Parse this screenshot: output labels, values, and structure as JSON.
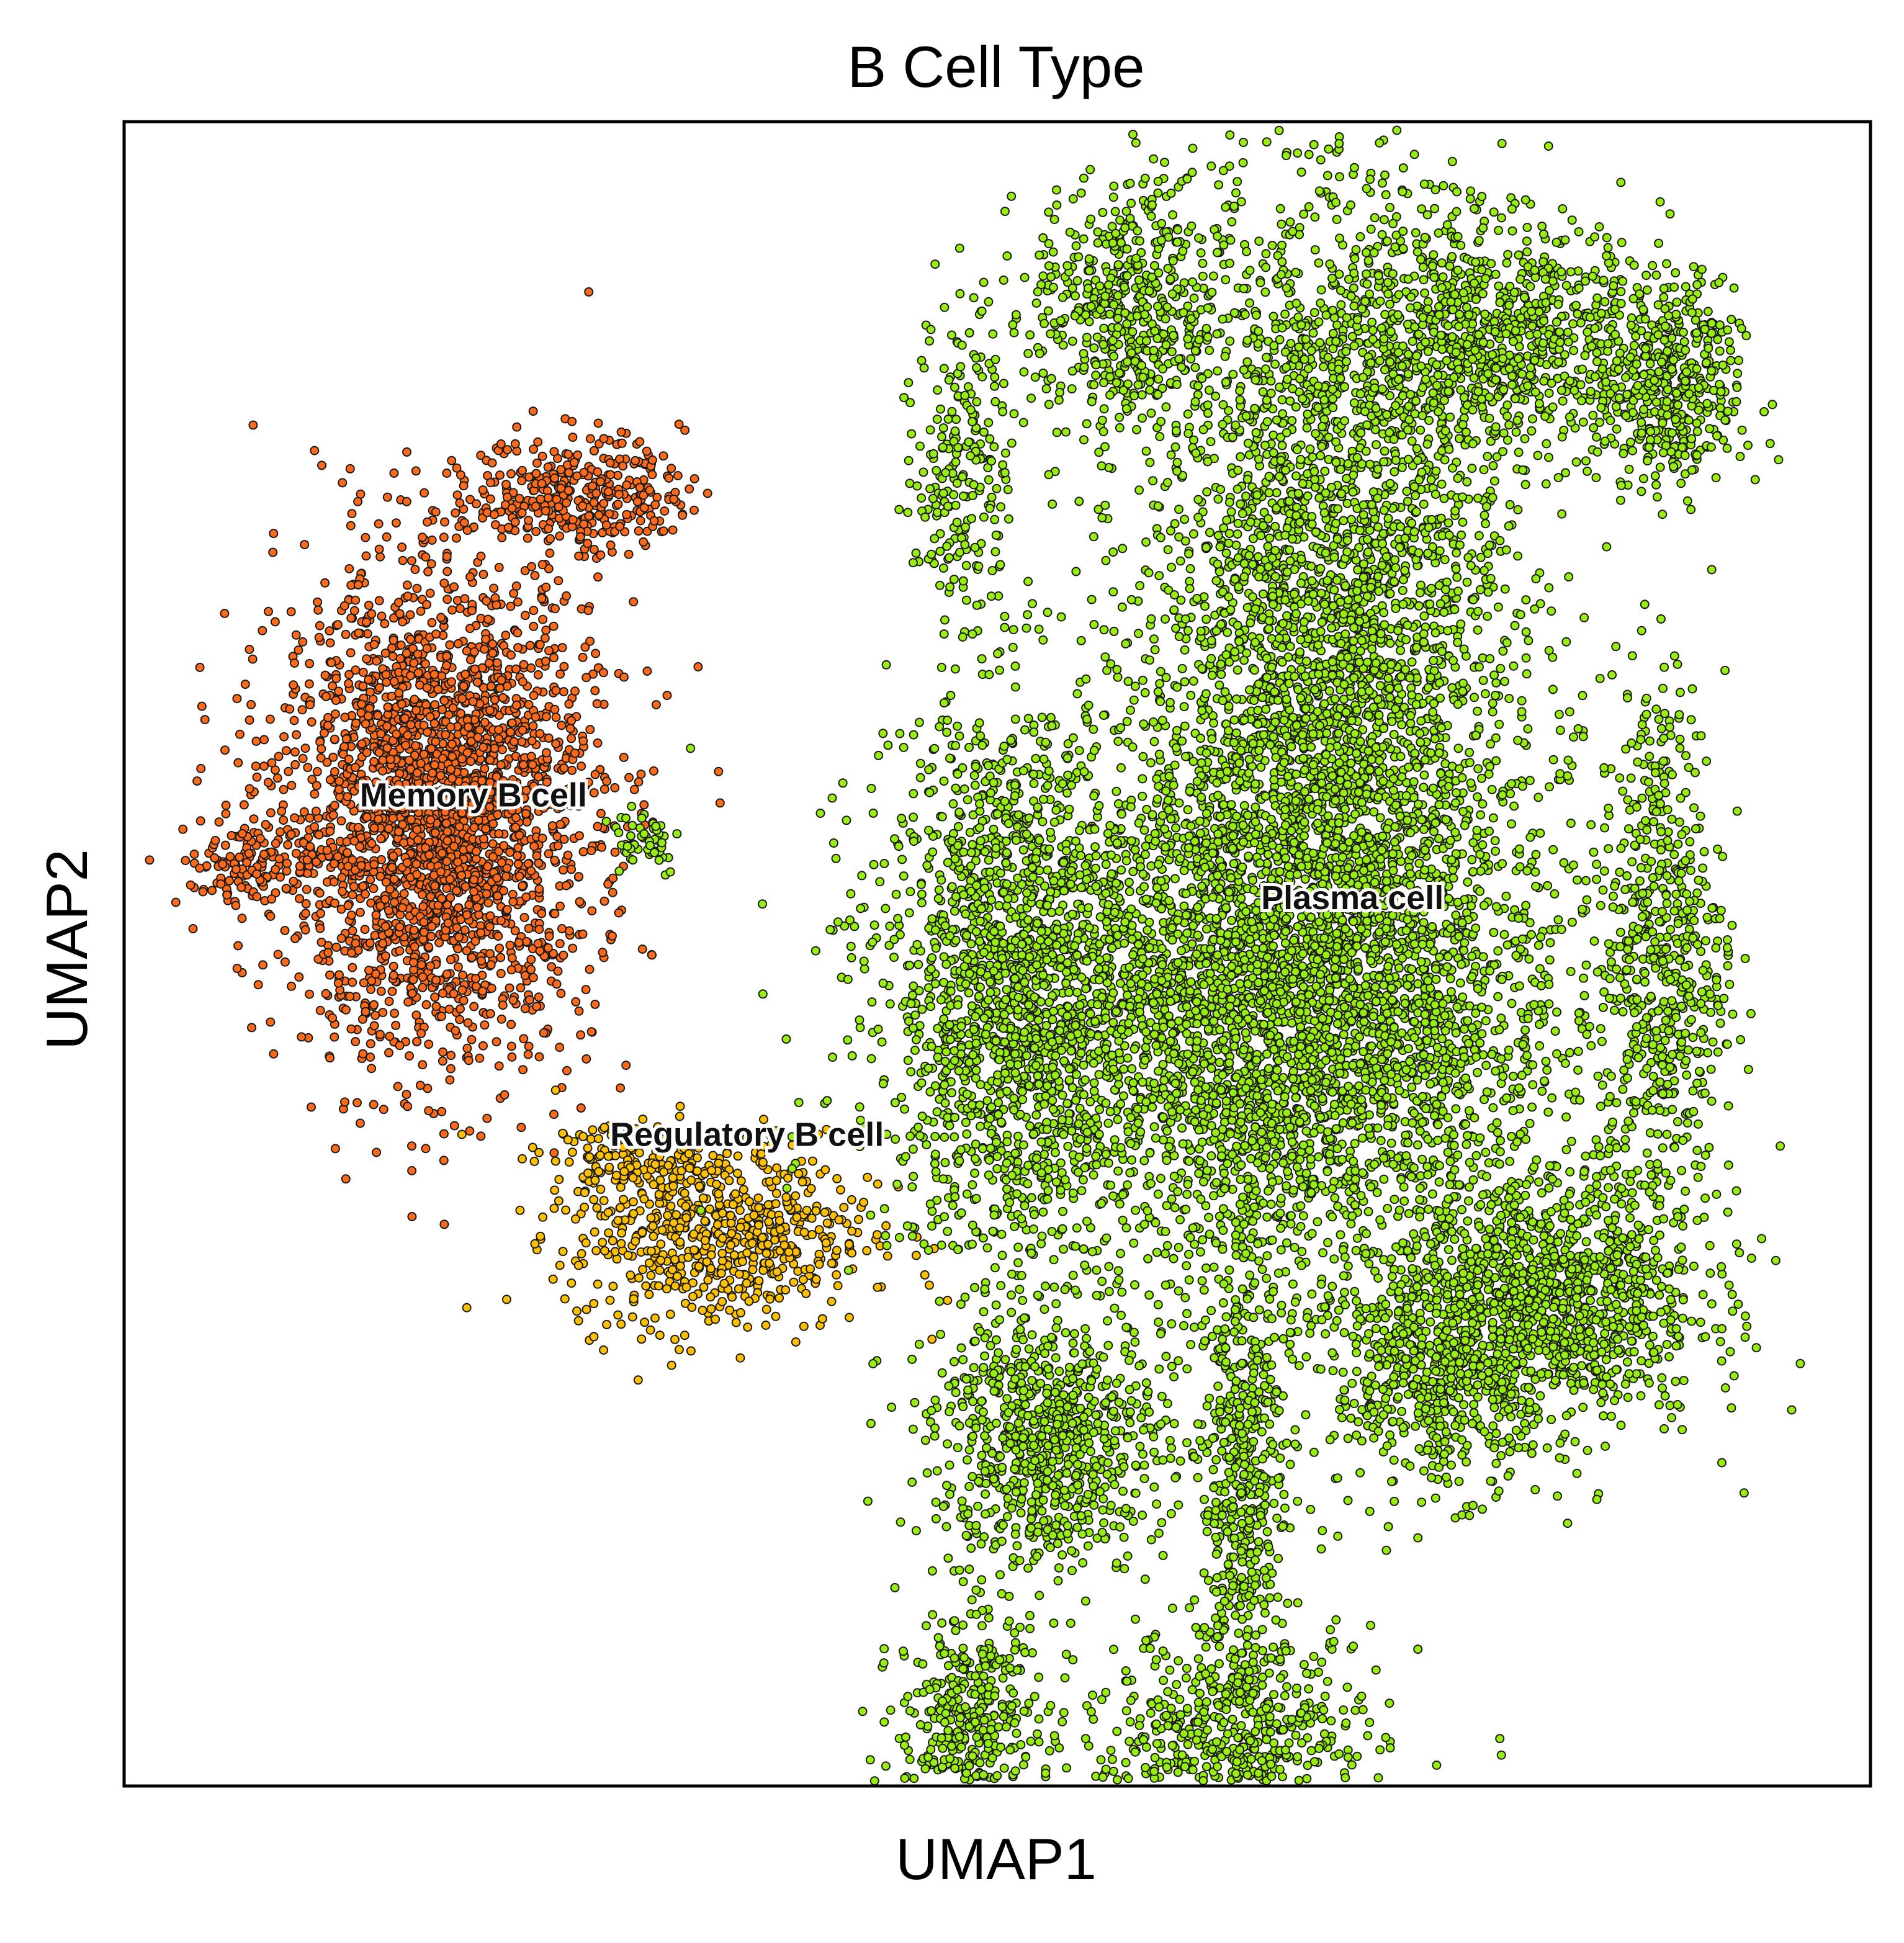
{
  "chart_data": {
    "type": "scatter",
    "title": "B Cell Type",
    "xlabel": "UMAP1",
    "ylabel": "UMAP2",
    "grid": false,
    "legend": "none",
    "xlim": [
      -10,
      20
    ],
    "ylim": [
      -10,
      16
    ],
    "series": [
      {
        "name": "Memory B cell",
        "color": "#FF6A1A",
        "clusters": [
          {
            "cx": -4.6,
            "cy": 5.2,
            "sx": 1.35,
            "sy": 1.9,
            "n": 2600
          },
          {
            "cx": -2.2,
            "cy": 10.2,
            "sx": 0.9,
            "sy": 0.45,
            "n": 350
          },
          {
            "cx": -7.8,
            "cy": 4.4,
            "sx": 0.6,
            "sy": 0.35,
            "n": 140
          }
        ]
      },
      {
        "name": "Regulatory B cell",
        "color": "#FFC000",
        "clusters": [
          {
            "cx": 0.2,
            "cy": -1.4,
            "sx": 1.3,
            "sy": 0.75,
            "n": 650
          },
          {
            "cx": -1.4,
            "cy": -0.2,
            "sx": 0.6,
            "sy": 0.3,
            "n": 120
          }
        ]
      },
      {
        "name": "Plasma cell",
        "color": "#99EE11",
        "clusters": [
          {
            "cx": 10.7,
            "cy": 6.8,
            "sx": 1.6,
            "sy": 4.2,
            "n": 4200
          },
          {
            "cx": 9.2,
            "cy": 2.0,
            "sx": 2.8,
            "sy": 2.0,
            "n": 3200
          },
          {
            "cx": 5.2,
            "cy": 2.8,
            "sx": 1.0,
            "sy": 2.2,
            "n": 1200
          },
          {
            "cx": 13.5,
            "cy": 12.6,
            "sx": 1.5,
            "sy": 0.9,
            "n": 900
          },
          {
            "cx": 16.6,
            "cy": 11.8,
            "sx": 0.6,
            "sy": 0.8,
            "n": 400
          },
          {
            "cx": 16.4,
            "cy": 3.0,
            "sx": 0.55,
            "sy": 2.2,
            "n": 600
          },
          {
            "cx": 14.5,
            "cy": -2.4,
            "sx": 1.3,
            "sy": 1.0,
            "n": 1100
          },
          {
            "cx": 12.6,
            "cy": -3.6,
            "sx": 0.9,
            "sy": 0.9,
            "n": 500
          },
          {
            "cx": 9.2,
            "cy": -5.4,
            "sx": 0.35,
            "sy": 2.0,
            "n": 500
          },
          {
            "cx": 9.0,
            "cy": -9.6,
            "sx": 1.3,
            "sy": 1.0,
            "n": 700
          },
          {
            "cx": 5.9,
            "cy": -4.6,
            "sx": 1.0,
            "sy": 1.0,
            "n": 800
          },
          {
            "cx": 4.5,
            "cy": -9.2,
            "sx": 0.6,
            "sy": 1.0,
            "n": 450
          },
          {
            "cx": 4.4,
            "cy": 10.8,
            "sx": 0.4,
            "sy": 1.3,
            "n": 220
          },
          {
            "cx": 7.2,
            "cy": 13.0,
            "sx": 0.8,
            "sy": 1.0,
            "n": 500
          },
          {
            "cx": -1.1,
            "cy": 4.8,
            "sx": 0.35,
            "sy": 0.3,
            "n": 50
          }
        ]
      }
    ],
    "annotations": [
      {
        "text": "Memory B cell",
        "x": -4.0,
        "y": 5.3
      },
      {
        "text": "Regulatory B cell",
        "x": 0.7,
        "y": 0.0
      },
      {
        "text": "Plasma cell",
        "x": 11.1,
        "y": 3.7
      }
    ]
  }
}
